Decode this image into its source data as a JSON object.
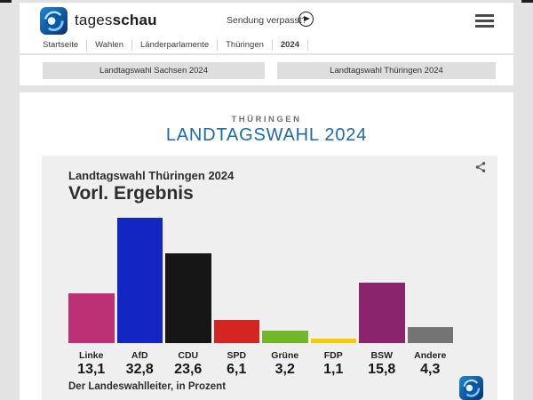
{
  "header": {
    "brand": {
      "regular": "tages",
      "bold": "schau"
    },
    "sendung_verpasst": "Sendung verpasst?",
    "breadcrumb": [
      "Startseite",
      "Wahlen",
      "Länderparlamente",
      "Thüringen",
      "2024"
    ]
  },
  "tabs": [
    {
      "label": "Landtagswahl Sachsen 2024"
    },
    {
      "label": "Landtagswahl Thüringen 2024"
    }
  ],
  "page": {
    "region": "THÜRINGEN",
    "title": "LANDTAGSWAHL 2024"
  },
  "chart_data": {
    "type": "bar",
    "title": "Landtagswahl Thüringen 2024",
    "subtitle": "Vorl. Ergebnis",
    "source": "Der Landeswahlleiter, in Prozent",
    "unit": "Prozent",
    "ylim": [
      0,
      34
    ],
    "grid": false,
    "categories": [
      "Linke",
      "AfD",
      "CDU",
      "SPD",
      "Grüne",
      "FDP",
      "BSW",
      "Andere"
    ],
    "values": [
      13.1,
      32.8,
      23.6,
      6.1,
      3.2,
      1.1,
      15.8,
      4.3
    ],
    "display_values": [
      "13,1",
      "32,8",
      "23,6",
      "6,1",
      "3,2",
      "1,1",
      "15,8",
      "4,3"
    ],
    "colors": [
      "#be3075",
      "#1226c4",
      "#161616",
      "#d42522",
      "#72b728",
      "#f7ca00",
      "#8a246c",
      "#747474"
    ]
  },
  "icons": {
    "play": "play-circle",
    "menu": "hamburger",
    "share": "share-alt",
    "logo": "ard-globe"
  },
  "theme": {
    "accent_blue": "#1c6ba5",
    "page_bg": "#e3e3e3",
    "chart_bg": "#efefef",
    "tab_bg": "#dedede"
  }
}
